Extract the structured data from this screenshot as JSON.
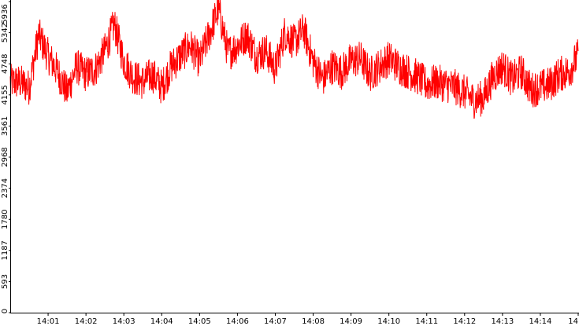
{
  "chart_data": {
    "type": "line",
    "title": "",
    "xlabel": "",
    "ylabel": "",
    "ylim": [
      0,
      5936
    ],
    "y_ticks": [
      "0",
      "593",
      "1187",
      "1780",
      "2374",
      "2968",
      "3561",
      "4155",
      "4748",
      "5342",
      "5936"
    ],
    "x_ticks": [
      "14:01",
      "14:02",
      "14:03",
      "14:04",
      "14:05",
      "14:06",
      "14:07",
      "14:08",
      "14:09",
      "14:10",
      "14:11",
      "14:12",
      "14:13",
      "14:14",
      "14"
    ],
    "grid": false,
    "series_color": "#ff0000",
    "x": [
      "14:00:15",
      "14:00:30",
      "14:00:45",
      "14:01:00",
      "14:01:15",
      "14:01:30",
      "14:01:45",
      "14:02:00",
      "14:02:15",
      "14:02:30",
      "14:02:45",
      "14:03:00",
      "14:03:15",
      "14:03:30",
      "14:03:45",
      "14:04:00",
      "14:04:15",
      "14:04:30",
      "14:04:45",
      "14:05:00",
      "14:05:15",
      "14:05:30",
      "14:05:45",
      "14:06:00",
      "14:06:15",
      "14:06:30",
      "14:06:45",
      "14:07:00",
      "14:07:15",
      "14:07:30",
      "14:07:45",
      "14:08:00",
      "14:08:15",
      "14:08:30",
      "14:08:45",
      "14:09:00",
      "14:09:15",
      "14:09:30",
      "14:09:45",
      "14:10:00",
      "14:10:15",
      "14:10:30",
      "14:10:45",
      "14:11:00",
      "14:11:15",
      "14:11:30",
      "14:11:45",
      "14:12:00",
      "14:12:15",
      "14:12:30",
      "14:12:45",
      "14:13:00",
      "14:13:15",
      "14:13:30",
      "14:13:45",
      "14:14:00",
      "14:14:15",
      "14:14:30",
      "14:14:45",
      "14:15:00"
    ],
    "values": [
      4400,
      4300,
      5300,
      4900,
      4600,
      4200,
      4700,
      4550,
      4650,
      5000,
      5500,
      4800,
      4500,
      4400,
      4550,
      4300,
      4700,
      4900,
      5100,
      4800,
      5300,
      5800,
      4950,
      5100,
      5300,
      4900,
      5000,
      4650,
      5350,
      5150,
      5400,
      4800,
      4450,
      4700,
      4600,
      4800,
      4850,
      4550,
      4700,
      4850,
      4700,
      4600,
      4500,
      4350,
      4400,
      4350,
      4300,
      4200,
      4050,
      4100,
      4500,
      4700,
      4450,
      4600,
      4250,
      4300,
      4350,
      4550,
      4600,
      4900
    ]
  }
}
